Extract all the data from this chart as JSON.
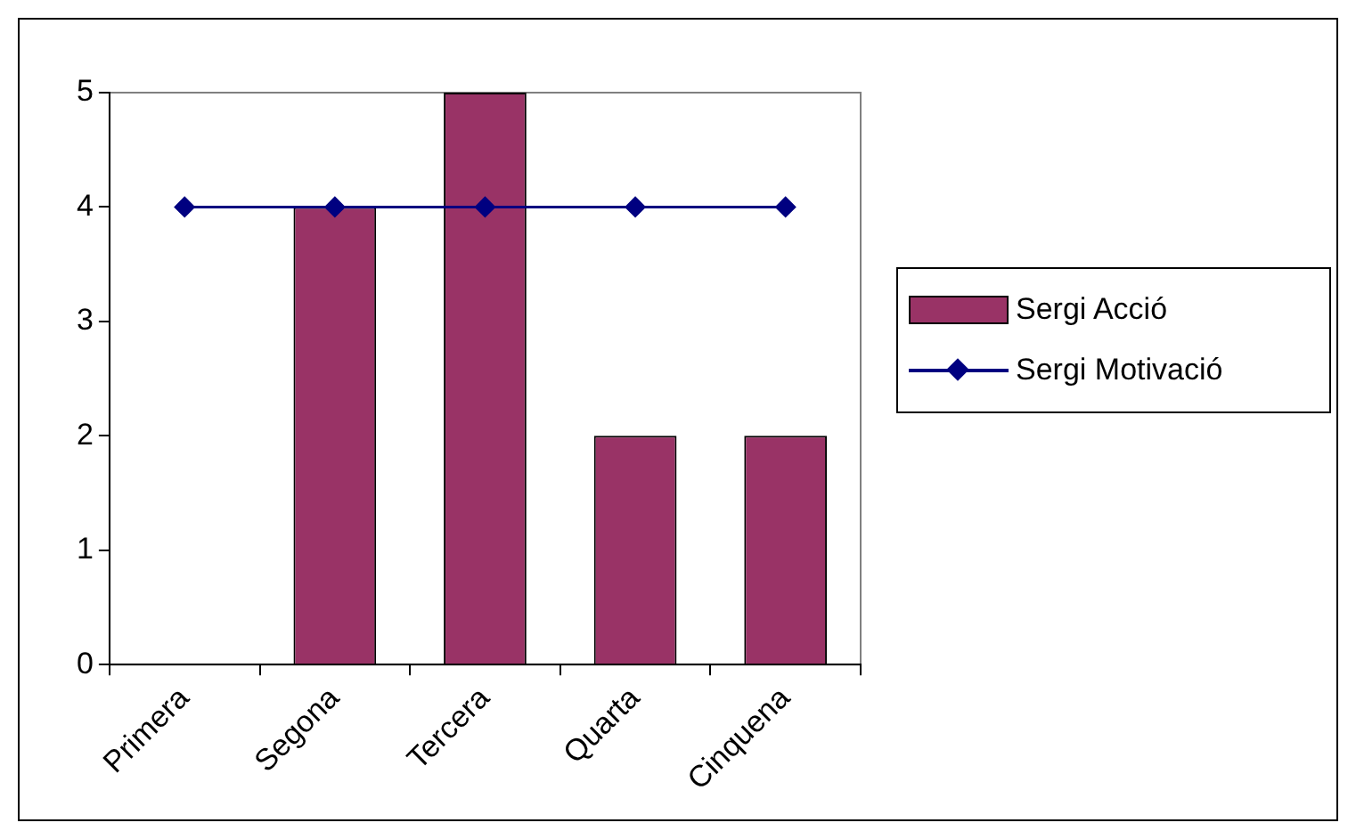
{
  "chart_data": {
    "type": "bar",
    "categories": [
      "Primera",
      "Segona",
      "Tercera",
      "Quarta",
      "Cinquena"
    ],
    "series": [
      {
        "name": "Sergi Acció",
        "color": "#993366",
        "values": [
          null,
          4,
          5,
          2,
          2
        ]
      },
      {
        "name": "Sergi Motivació",
        "type": "line",
        "color": "#000080",
        "values": [
          4,
          4,
          4,
          4,
          4
        ],
        "marker": "diamond"
      }
    ],
    "ylim": [
      0,
      5
    ],
    "yticks": [
      0,
      1,
      2,
      3,
      4,
      5
    ],
    "grid": false,
    "legend": "right"
  }
}
